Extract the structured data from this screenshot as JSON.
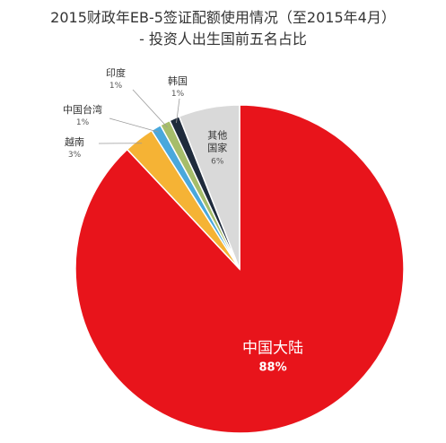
{
  "chart_data": {
    "type": "pie",
    "title": "2015财政年EB-5签证配额使用情况（至2015年4月）",
    "subtitle": "- 投资人出生国前五名占比",
    "slices": [
      {
        "name": "中国大陆",
        "value": 88,
        "label": "88%",
        "color": "#e8141b"
      },
      {
        "name": "越南",
        "value": 3,
        "label": "3%",
        "color": "#f5b335"
      },
      {
        "name": "中国台湾",
        "value": 1,
        "label": "1%",
        "color": "#4aa8dc"
      },
      {
        "name": "印度",
        "value": 1,
        "label": "1%",
        "color": "#a6bd6a"
      },
      {
        "name": "韩国",
        "value": 1,
        "label": "1%",
        "color": "#1f2b3c"
      },
      {
        "name": "其他国家",
        "value": 6,
        "label": "6%",
        "color": "#d9d9d9",
        "name_lines": [
          "其他",
          "国家"
        ]
      }
    ]
  }
}
